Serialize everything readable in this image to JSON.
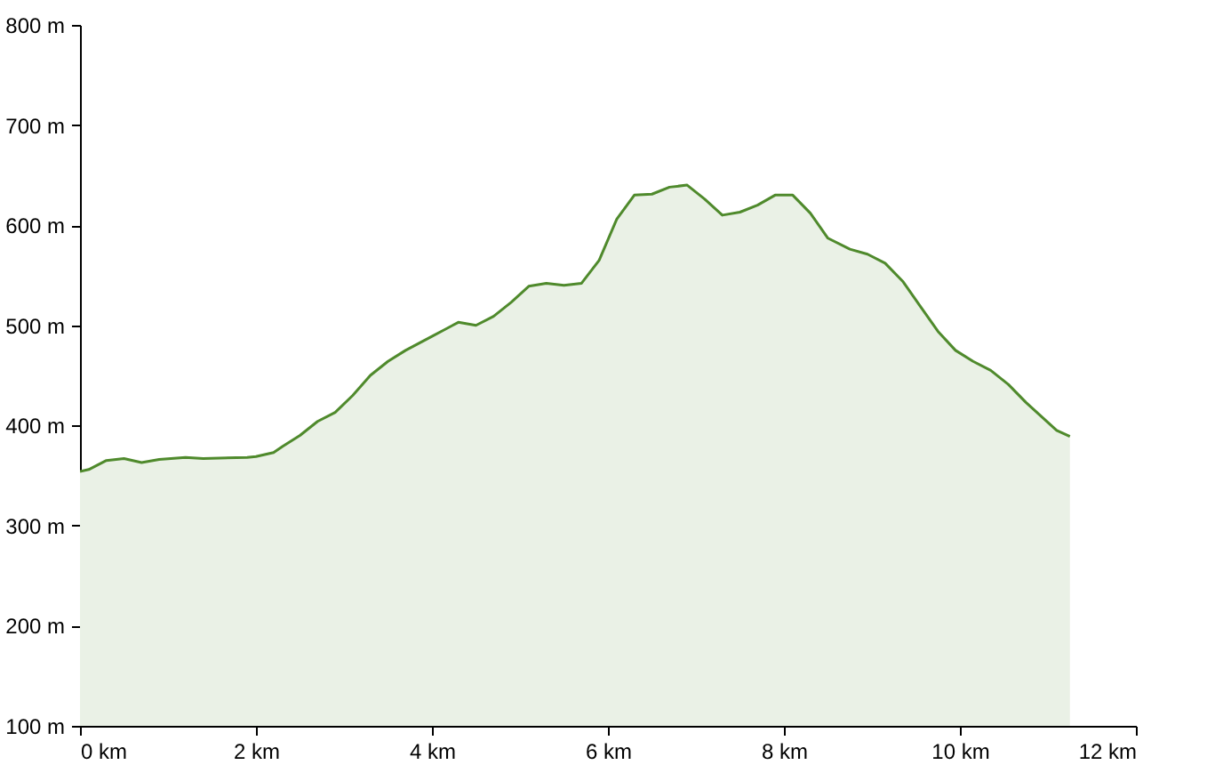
{
  "chart_data": {
    "type": "area",
    "x": [
      0,
      0.1,
      0.3,
      0.5,
      0.7,
      0.9,
      1.2,
      1.4,
      1.9,
      2.0,
      2.2,
      2.3,
      2.5,
      2.7,
      2.9,
      3.1,
      3.3,
      3.5,
      3.7,
      4.0,
      4.15,
      4.3,
      4.5,
      4.7,
      4.9,
      5.1,
      5.3,
      5.5,
      5.7,
      5.9,
      6.1,
      6.3,
      6.5,
      6.7,
      6.9,
      7.1,
      7.3,
      7.5,
      7.7,
      7.9,
      8.1,
      8.3,
      8.5,
      8.75,
      8.95,
      9.15,
      9.35,
      9.55,
      9.75,
      9.95,
      10.15,
      10.35,
      10.55,
      10.75,
      10.95,
      11.1,
      11.25
    ],
    "series": [
      {
        "color": "#4f8a2c",
        "values": [
          354,
          356,
          365,
          367,
          363,
          366,
          368,
          367,
          368,
          369,
          373,
          379,
          390,
          404,
          413,
          430,
          450,
          464,
          475,
          489,
          496,
          503,
          500,
          509,
          523,
          539,
          542,
          540,
          542,
          565,
          606,
          630,
          631,
          638,
          640,
          626,
          610,
          613,
          620,
          630,
          630,
          612,
          587,
          576,
          571,
          562,
          544,
          519,
          494,
          475,
          464,
          455,
          441,
          423,
          407,
          395,
          389
        ]
      }
    ],
    "xlim": [
      0,
      12
    ],
    "ylim": [
      100,
      800
    ],
    "xticks": [
      {
        "value": 0,
        "label": "0 km"
      },
      {
        "value": 2,
        "label": "2 km"
      },
      {
        "value": 4,
        "label": "4 km"
      },
      {
        "value": 6,
        "label": "6 km"
      },
      {
        "value": 8,
        "label": "8 km"
      },
      {
        "value": 10,
        "label": "10 km"
      },
      {
        "value": 12,
        "label": "12 km"
      }
    ],
    "yticks": [
      {
        "value": 100,
        "label": "100 m"
      },
      {
        "value": 200,
        "label": "200 m"
      },
      {
        "value": 300,
        "label": "300 m"
      },
      {
        "value": 400,
        "label": "400 m"
      },
      {
        "value": 500,
        "label": "500 m"
      },
      {
        "value": 600,
        "label": "600 m"
      },
      {
        "value": 700,
        "label": "700 m"
      },
      {
        "value": 800,
        "label": "800 m"
      }
    ],
    "grid": false
  }
}
